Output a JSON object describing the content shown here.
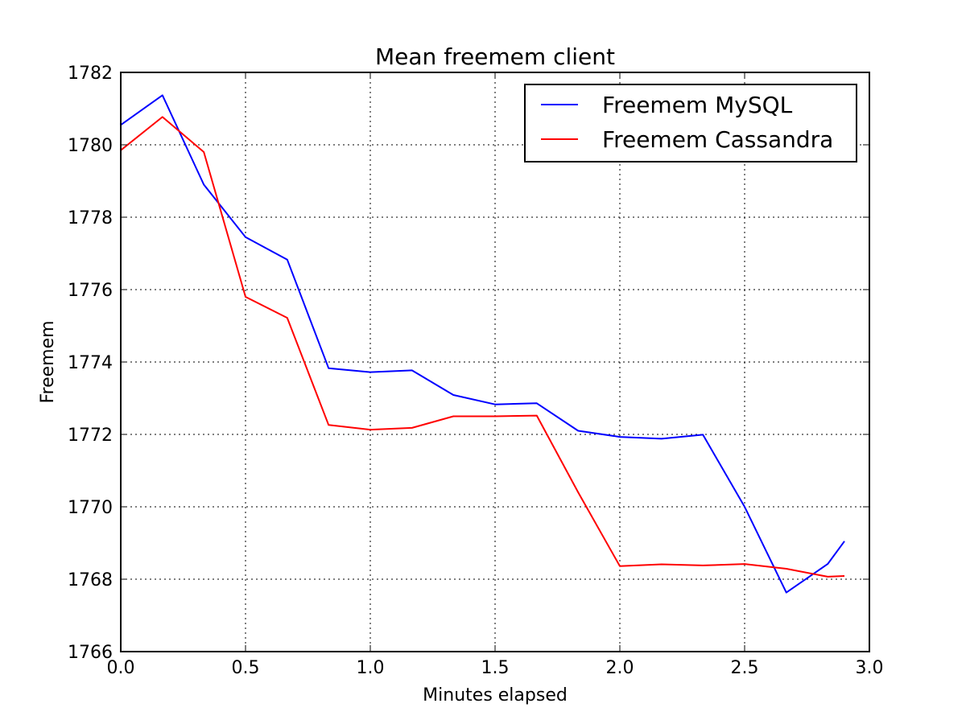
{
  "chart_data": {
    "type": "line",
    "title": "Mean freemem client",
    "xlabel": "Minutes elapsed",
    "ylabel": "Freemem",
    "xlim": [
      0.0,
      3.0
    ],
    "ylim": [
      1766,
      1782
    ],
    "xticks": [
      0.0,
      0.5,
      1.0,
      1.5,
      2.0,
      2.5,
      3.0
    ],
    "xtick_labels": [
      "0.0",
      "0.5",
      "1.0",
      "1.5",
      "2.0",
      "2.5",
      "3.0"
    ],
    "yticks": [
      1766,
      1768,
      1770,
      1772,
      1774,
      1776,
      1778,
      1780,
      1782
    ],
    "ytick_labels": [
      "1766",
      "1768",
      "1770",
      "1772",
      "1774",
      "1776",
      "1778",
      "1780",
      "1782"
    ],
    "grid": true,
    "legend_position": "top-right",
    "series": [
      {
        "name": "Freemem MySQL",
        "color": "#0000ff",
        "x": [
          0.0,
          0.167,
          0.333,
          0.5,
          0.667,
          0.833,
          1.0,
          1.167,
          1.333,
          1.5,
          1.667,
          1.833,
          2.0,
          2.167,
          2.333,
          2.5,
          2.667,
          2.833,
          2.9
        ],
        "y": [
          1780.55,
          1781.37,
          1778.9,
          1777.45,
          1776.83,
          1773.83,
          1773.72,
          1773.77,
          1773.09,
          1772.83,
          1772.86,
          1772.1,
          1771.93,
          1771.88,
          1771.99,
          1770.0,
          1767.63,
          1768.42,
          1769.05
        ]
      },
      {
        "name": "Freemem Cassandra",
        "color": "#ff0000",
        "x": [
          0.0,
          0.167,
          0.333,
          0.5,
          0.667,
          0.833,
          1.0,
          1.167,
          1.333,
          1.5,
          1.667,
          1.833,
          2.0,
          2.167,
          2.333,
          2.5,
          2.667,
          2.833,
          2.9
        ],
        "y": [
          1779.85,
          1780.77,
          1779.8,
          1775.8,
          1775.22,
          1772.26,
          1772.13,
          1772.18,
          1772.5,
          1772.5,
          1772.52,
          1770.4,
          1768.36,
          1768.41,
          1768.38,
          1768.42,
          1768.29,
          1768.07,
          1768.09
        ]
      }
    ]
  }
}
